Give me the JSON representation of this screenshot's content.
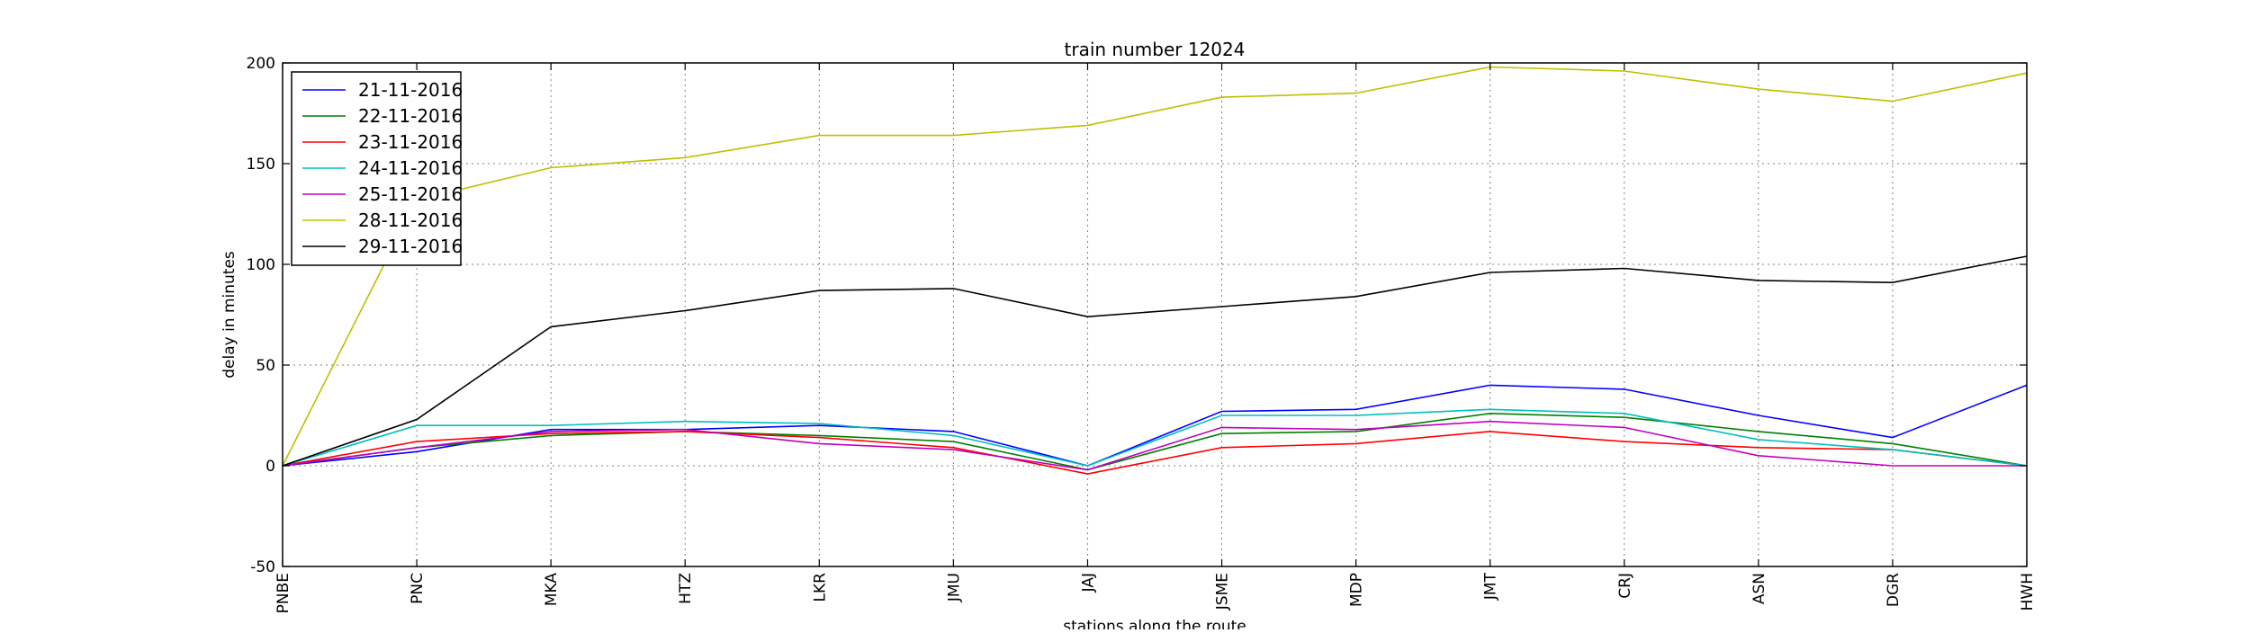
{
  "chart_data": {
    "type": "line",
    "title": "train number 12024",
    "xlabel": "stations along the route",
    "ylabel": "delay in minutes",
    "ylim": [
      -50,
      200
    ],
    "yticks": [
      -50,
      0,
      50,
      100,
      150,
      200
    ],
    "grid": true,
    "legend_position": "top-left",
    "categories": [
      "PNBE",
      "PNC",
      "MKA",
      "HTZ",
      "LKR",
      "JMU",
      "JAJ",
      "JSME",
      "MDP",
      "JMT",
      "CRJ",
      "ASN",
      "DGR",
      "HWH"
    ],
    "series": [
      {
        "name": "21-11-2016",
        "color": "#0000ff",
        "values": [
          0,
          7,
          18,
          18,
          20,
          17,
          0,
          27,
          28,
          40,
          38,
          25,
          14,
          40
        ]
      },
      {
        "name": "22-11-2016",
        "color": "#008000",
        "values": [
          0,
          9,
          15,
          17,
          15,
          12,
          -2,
          16,
          17,
          26,
          24,
          17,
          11,
          0
        ]
      },
      {
        "name": "23-11-2016",
        "color": "#ff0000",
        "values": [
          0,
          12,
          16,
          17,
          14,
          9,
          -4,
          9,
          11,
          17,
          12,
          9,
          8,
          0
        ]
      },
      {
        "name": "24-11-2016",
        "color": "#00bfbf",
        "values": [
          0,
          20,
          20,
          22,
          21,
          15,
          0,
          25,
          25,
          28,
          26,
          13,
          8,
          0
        ]
      },
      {
        "name": "25-11-2016",
        "color": "#bf00bf",
        "values": [
          0,
          9,
          17,
          18,
          11,
          8,
          -2,
          19,
          18,
          22,
          19,
          5,
          0,
          0
        ]
      },
      {
        "name": "28-11-2016",
        "color": "#bfbf00",
        "values": [
          0,
          132,
          148,
          153,
          164,
          164,
          169,
          183,
          185,
          198,
          196,
          187,
          181,
          195
        ]
      },
      {
        "name": "29-11-2016",
        "color": "#000000",
        "values": [
          0,
          23,
          69,
          77,
          87,
          88,
          74,
          79,
          84,
          96,
          98,
          92,
          91,
          104
        ]
      }
    ]
  }
}
